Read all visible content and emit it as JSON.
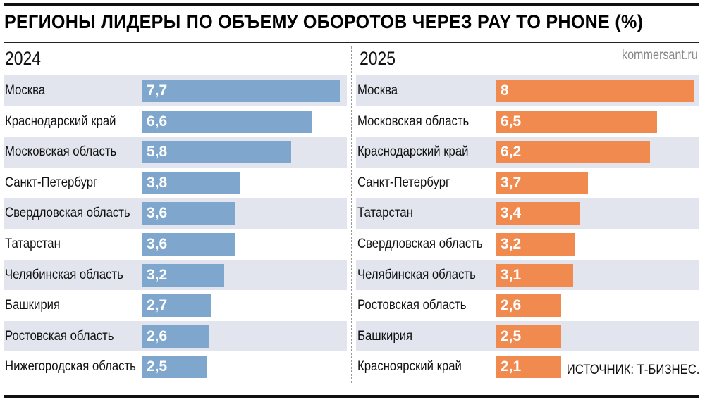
{
  "chart_data": [
    {
      "type": "bar",
      "orientation": "horizontal",
      "title": "РЕГИОНЫ ЛИДЕРЫ ПО ОБЪЕМУ ОБОРОТОВ ЧЕРЕЗ PAY TO PHONE (%)",
      "panel_label": "2024",
      "categories": [
        "Москва",
        "Краснодарский край",
        "Московская область",
        "Санкт-Петербург",
        "Свердловская область",
        "Татарстан",
        "Челябинская область",
        "Башкирия",
        "Ростовская область",
        "Нижегородская область"
      ],
      "values": [
        7.7,
        6.6,
        5.8,
        3.8,
        3.6,
        3.6,
        3.2,
        2.7,
        2.6,
        2.5
      ],
      "value_labels": [
        "7,7",
        "6,6",
        "5,8",
        "3,8",
        "3,6",
        "3,6",
        "3,2",
        "2,7",
        "2,6",
        "2,5"
      ],
      "color": "#7fa6cc"
    },
    {
      "type": "bar",
      "orientation": "horizontal",
      "panel_label": "2025",
      "categories": [
        "Москва",
        "Московская область",
        "Краснодарский край",
        "Санкт-Петербург",
        "Татарстан",
        "Свердловская область",
        "Челябинская область",
        "Ростовская область",
        "Башкирия",
        "Красноярский край"
      ],
      "values": [
        8,
        6.5,
        6.2,
        3.7,
        3.4,
        3.2,
        3.1,
        2.6,
        2.5,
        2.1
      ],
      "value_labels": [
        "8",
        "6,5",
        "6,2",
        "3,7",
        "3,4",
        "3,2",
        "3,1",
        "2,6",
        "2,5",
        "2,1"
      ],
      "color": "#f08a4f"
    }
  ],
  "header": {
    "title": "РЕГИОНЫ ЛИДЕРЫ ПО ОБЪЕМУ ОБОРОТОВ ЧЕРЕЗ PAY TO PHONE (%)",
    "site": "kommersant.ru"
  },
  "footer": {
    "source": "ИСТОЧНИК: Т-БИЗНЕС."
  },
  "colors": {
    "row_shade": "#e3e5ee"
  }
}
